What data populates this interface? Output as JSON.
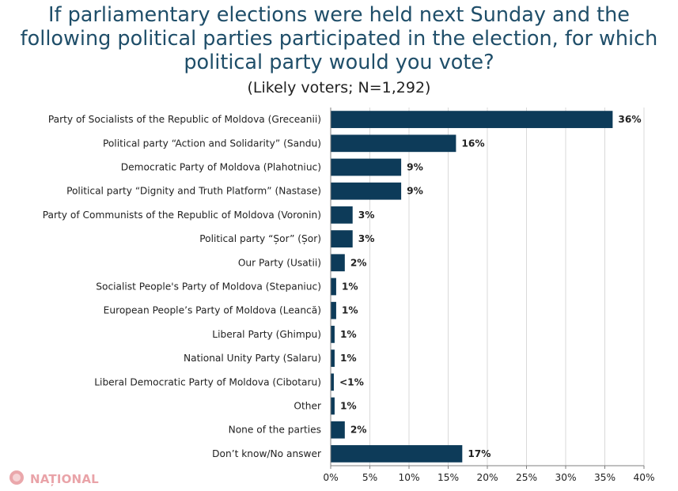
{
  "header": {
    "title_line1": "If parliamentary elections were held next Sunday and the",
    "title_line2": "following political parties participated in the election, for which",
    "title_line3": "political party would you vote?",
    "subtitle": "(Likely voters; N=1,292)"
  },
  "logo": {
    "text": "NAȚIONAL",
    "icon": "national-logo-icon",
    "color": "#e9a3a8"
  },
  "colors": {
    "bar": "#0d3b59",
    "title": "#1f4e69",
    "grid": "#d9d9d9",
    "text": "#222222"
  },
  "chart_data": {
    "type": "bar",
    "orientation": "horizontal",
    "categories": [
      "Party of Socialists of the Republic of Moldova (Greceanii)",
      "Political party “Action and Solidarity” (Sandu)",
      "Democratic Party of Moldova (Plahotniuc)",
      "Political party “Dignity and Truth Platform” (Nastase)",
      "Party of Communists of the Republic of Moldova (Voronin)",
      "Political party “Șor” (Șor)",
      "Our Party (Usatii)",
      "Socialist People's Party of Moldova (Stepaniuc)",
      "European People’s Party of Moldova (Leancă)",
      "Liberal Party (Ghimpu)",
      "National Unity Party (Salaru)",
      "Liberal Democratic Party of Moldova (Cibotaru)",
      "Other",
      "None of the parties",
      "Don’t know/No answer"
    ],
    "values": [
      36,
      16,
      9,
      9,
      2.8,
      2.8,
      1.8,
      0.7,
      0.7,
      0.5,
      0.5,
      0.4,
      0.5,
      1.8,
      16.8
    ],
    "value_labels": [
      "36%",
      "16%",
      "9%",
      "9%",
      "3%",
      "3%",
      "2%",
      "1%",
      "1%",
      "1%",
      "1%",
      "<1%",
      "1%",
      "2%",
      "17%"
    ],
    "xlim": [
      0,
      40
    ],
    "xticks": [
      0,
      5,
      10,
      15,
      20,
      25,
      30,
      35,
      40
    ],
    "xtick_labels": [
      "0%",
      "5%",
      "10%",
      "15%",
      "20%",
      "25%",
      "30%",
      "35%",
      "40%"
    ],
    "grid": true
  }
}
